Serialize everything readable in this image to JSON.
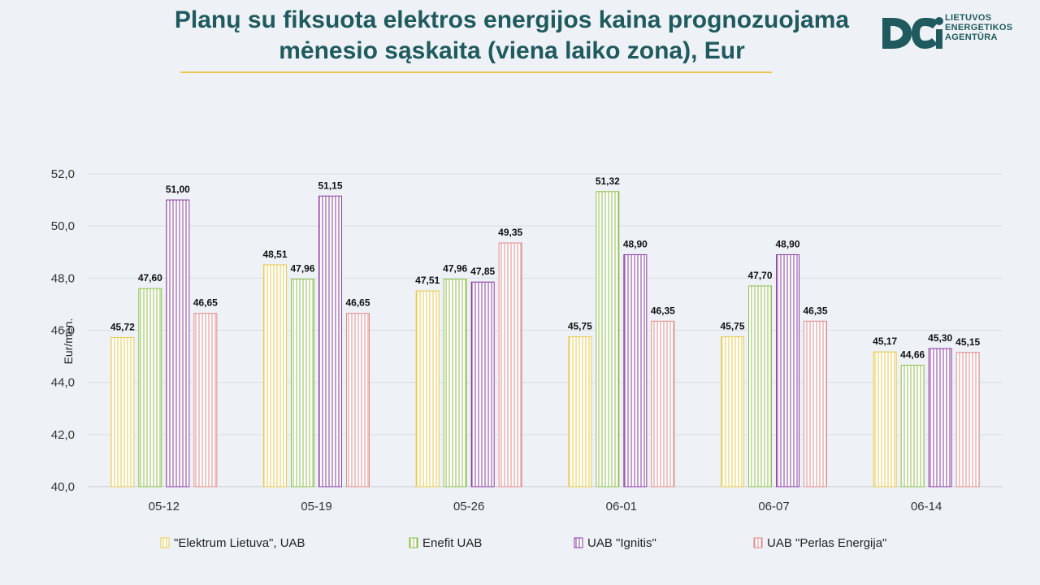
{
  "header": {
    "title_line1": "Planų su fiksuota elektros energijos kaina prognozuojama",
    "title_line2": "mėnesio sąskaita (viena laiko zona), Eur"
  },
  "logo": {
    "line1": "LIETUVOS",
    "line2": "ENERGETIKOS",
    "line3": "AGENTŪRA",
    "color": "#1f5a5e"
  },
  "chart_data": {
    "type": "bar",
    "title": "Planų su fiksuota elektros energijos kaina prognozuojama mėnesio sąskaita (viena laiko zona), Eur",
    "xlabel": "",
    "ylabel": "Eur/mėn.",
    "ylim": [
      40,
      52
    ],
    "yticks": [
      "40,0",
      "42,0",
      "44,0",
      "46,0",
      "48,0",
      "50,0",
      "52,0"
    ],
    "grid": true,
    "legend_position": "bottom",
    "categories": [
      "05-12",
      "05-19",
      "05-26",
      "06-01",
      "06-07",
      "06-14"
    ],
    "series": [
      {
        "name": "\"Elektrum Lietuva\", UAB",
        "color": "#e8c84a",
        "values": [
          45.72,
          48.51,
          47.51,
          45.75,
          45.75,
          45.17
        ],
        "labels": [
          "45,72",
          "48,51",
          "47,51",
          "45,75",
          "45,75",
          "45,17"
        ]
      },
      {
        "name": "Enefit UAB",
        "color": "#8cbf4a",
        "values": [
          47.6,
          47.96,
          47.96,
          51.32,
          47.7,
          44.66
        ],
        "labels": [
          "47,60",
          "47,96",
          "47,96",
          "51,32",
          "47,70",
          "44,66"
        ]
      },
      {
        "name": "UAB \"Ignitis\"",
        "color": "#8a3aa0",
        "values": [
          51.0,
          51.15,
          47.85,
          48.9,
          48.9,
          45.3
        ],
        "labels": [
          "51,00",
          "51,15",
          "47,85",
          "48,90",
          "48,90",
          "45,30"
        ]
      },
      {
        "name": "UAB \"Perlas Energija\"",
        "color": "#e08a8a",
        "values": [
          46.65,
          46.65,
          49.35,
          46.35,
          46.35,
          45.15
        ],
        "labels": [
          "46,65",
          "46,65",
          "49,35",
          "46,35",
          "46,35",
          "45,15"
        ]
      }
    ]
  }
}
